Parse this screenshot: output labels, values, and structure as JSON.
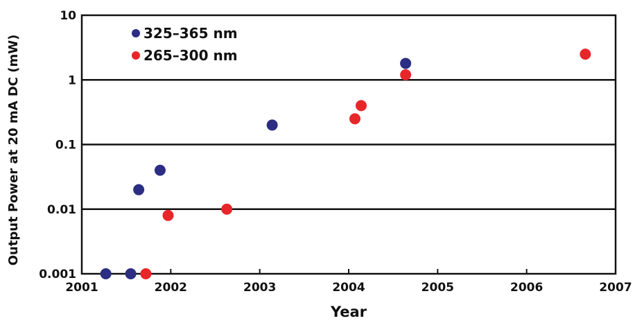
{
  "chart_data": {
    "type": "scatter",
    "xlabel": "Year",
    "ylabel": "Output Power at 20 mA DC (mW)",
    "xlim": [
      2001,
      2007
    ],
    "ylim": [
      0.001,
      10
    ],
    "yscale": "log",
    "xticks": [
      "2001",
      "2002",
      "2003",
      "2004",
      "2005",
      "2006",
      "2007"
    ],
    "yticks": [
      "0.001",
      "0.01",
      "0.1",
      "1",
      "10"
    ],
    "grid": "horizontal major lines",
    "legend_position": "top-left",
    "series": [
      {
        "name": "325–365 nm",
        "color": "#2b2e83",
        "points": [
          {
            "x": 2001.27,
            "y": 0.001
          },
          {
            "x": 2001.55,
            "y": 0.001
          },
          {
            "x": 2001.64,
            "y": 0.02
          },
          {
            "x": 2001.88,
            "y": 0.04
          },
          {
            "x": 2003.14,
            "y": 0.2
          },
          {
            "x": 2004.64,
            "y": 1.8
          }
        ]
      },
      {
        "name": "265–300 nm",
        "color": "#e8262a",
        "points": [
          {
            "x": 2001.72,
            "y": 0.001
          },
          {
            "x": 2001.97,
            "y": 0.008
          },
          {
            "x": 2002.63,
            "y": 0.01
          },
          {
            "x": 2004.07,
            "y": 0.25
          },
          {
            "x": 2004.14,
            "y": 0.4
          },
          {
            "x": 2004.64,
            "y": 1.2
          },
          {
            "x": 2006.66,
            "y": 2.5
          }
        ]
      }
    ]
  }
}
